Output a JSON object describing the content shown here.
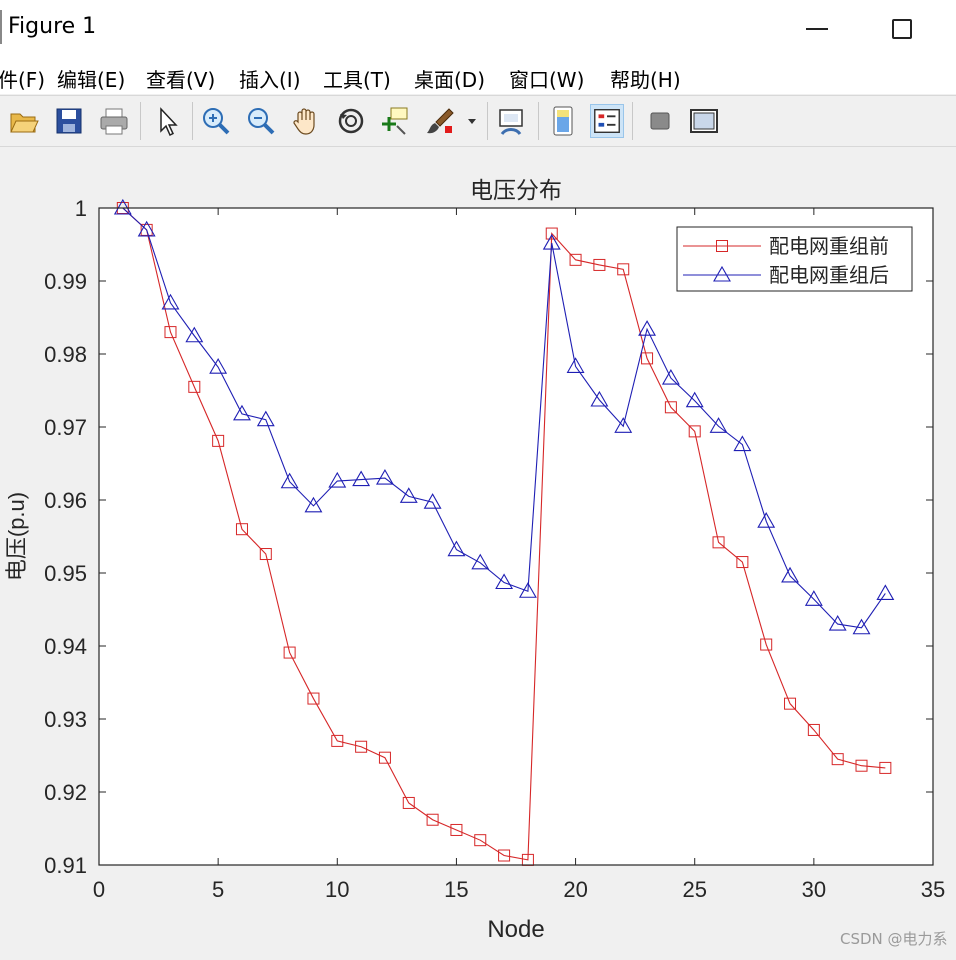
{
  "window": {
    "title": "Figure 1"
  },
  "menu": [
    {
      "id": "file",
      "label": "件(F)"
    },
    {
      "id": "edit",
      "label": "编辑(E)"
    },
    {
      "id": "view",
      "label": "查看(V)"
    },
    {
      "id": "insert",
      "label": "插入(I)"
    },
    {
      "id": "tools",
      "label": "工具(T)"
    },
    {
      "id": "desktop",
      "label": "桌面(D)"
    },
    {
      "id": "window",
      "label": "窗口(W)"
    },
    {
      "id": "help",
      "label": "帮助(H)"
    }
  ],
  "toolbar": [
    {
      "name": "open-file-icon",
      "active": false
    },
    {
      "name": "save-icon",
      "active": false
    },
    {
      "name": "print-icon",
      "active": false
    },
    {
      "name": "select-pointer-icon",
      "active": false
    },
    {
      "name": "zoom-in-icon",
      "active": false
    },
    {
      "name": "zoom-out-icon",
      "active": false
    },
    {
      "name": "pan-hand-icon",
      "active": false
    },
    {
      "name": "rotate-3d-icon",
      "active": false
    },
    {
      "name": "data-cursor-icon",
      "active": false
    },
    {
      "name": "brush-icon",
      "active": false
    },
    {
      "name": "brush-dropdown-icon",
      "active": false
    },
    {
      "name": "link-plot-icon",
      "active": false
    },
    {
      "name": "colorbar-icon",
      "active": false
    },
    {
      "name": "legend-icon",
      "active": true
    },
    {
      "name": "hide-plot-tools-icon",
      "active": false
    },
    {
      "name": "show-plot-tools-icon",
      "active": false
    }
  ],
  "colors": {
    "series_before": "#d62728",
    "series_after": "#1f1fb4",
    "axes_bg": "#ffffff",
    "figure_bg": "#f0f0f0"
  },
  "watermark": "CSDN @电力系",
  "chart_data": {
    "type": "line",
    "title": "电压分布",
    "xlabel": "Node",
    "ylabel": "电压(p.u)",
    "xlim": [
      0,
      35
    ],
    "ylim": [
      0.91,
      1.0
    ],
    "xticks": [
      0,
      5,
      10,
      15,
      20,
      25,
      30,
      35
    ],
    "yticks": [
      0.91,
      0.92,
      0.93,
      0.94,
      0.95,
      0.96,
      0.97,
      0.98,
      0.99,
      1
    ],
    "ytick_labels": [
      "0.91",
      "0.92",
      "0.93",
      "0.94",
      "0.95",
      "0.96",
      "0.97",
      "0.98",
      "0.99",
      "1"
    ],
    "legend_position": "top-right",
    "grid": false,
    "x": [
      1,
      2,
      3,
      4,
      5,
      6,
      7,
      8,
      9,
      10,
      11,
      12,
      13,
      14,
      15,
      16,
      17,
      18,
      19,
      20,
      21,
      22,
      23,
      24,
      25,
      26,
      27,
      28,
      29,
      30,
      31,
      32,
      33
    ],
    "series": [
      {
        "name": "配电网重组前",
        "marker": "square",
        "values": [
          1.0,
          0.997,
          0.983,
          0.9755,
          0.9681,
          0.956,
          0.9526,
          0.9391,
          0.9328,
          0.927,
          0.9262,
          0.9247,
          0.9185,
          0.9162,
          0.9148,
          0.9134,
          0.9113,
          0.9107,
          0.9965,
          0.9929,
          0.9922,
          0.9916,
          0.9794,
          0.9727,
          0.9694,
          0.9542,
          0.9515,
          0.9402,
          0.9321,
          0.9285,
          0.9245,
          0.9236,
          0.9233
        ]
      },
      {
        "name": "配电网重组后",
        "marker": "triangle",
        "values": [
          1.0,
          0.997,
          0.987,
          0.9825,
          0.9782,
          0.9718,
          0.971,
          0.9625,
          0.9592,
          0.9626,
          0.9628,
          0.963,
          0.9605,
          0.9597,
          0.9532,
          0.9514,
          0.9487,
          0.9475,
          0.9952,
          0.9783,
          0.9737,
          0.9701,
          0.9834,
          0.9767,
          0.9736,
          0.9701,
          0.9676,
          0.9571,
          0.9496,
          0.9464,
          0.943,
          0.9425,
          0.9472
        ]
      }
    ]
  }
}
